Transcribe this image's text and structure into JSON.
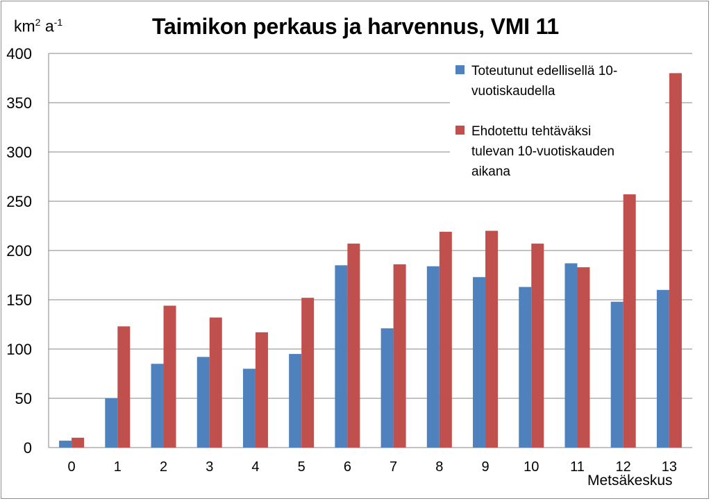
{
  "chart_data": {
    "type": "bar",
    "title": "Taimikon perkaus ja harvennus, VMI 11",
    "ylabel_base": "km",
    "ylabel_sup1": "2",
    "ylabel_mid": " a",
    "ylabel_sup2": "-1",
    "xlabel": "Metsäkeskus",
    "categories": [
      "0",
      "1",
      "2",
      "3",
      "4",
      "5",
      "6",
      "7",
      "8",
      "9",
      "10",
      "11",
      "12",
      "13"
    ],
    "ylim": [
      0,
      400
    ],
    "yticks": [
      "0",
      "50",
      "100",
      "150",
      "200",
      "250",
      "300",
      "350",
      "400"
    ],
    "grid": true,
    "legend_position": "top-right",
    "series": [
      {
        "name": "Toteutunut edellisellä 10-vuotiskaudella",
        "legend_lines": [
          "Toteutunut edellisellä 10-",
          "vuotiskaudella"
        ],
        "color": "#4f81bd",
        "values": [
          7,
          50,
          85,
          92,
          80,
          95,
          185,
          121,
          184,
          173,
          163,
          187,
          148,
          160
        ]
      },
      {
        "name": "Ehdotettu tehtäväksi tulevan 10-vuotiskauden aikana",
        "legend_lines": [
          "Ehdotettu tehtäväksi",
          "tulevan  10-vuotiskauden",
          "aikana"
        ],
        "color": "#c0504d",
        "values": [
          10,
          123,
          144,
          132,
          117,
          152,
          207,
          186,
          219,
          220,
          207,
          183,
          257,
          380
        ]
      }
    ]
  }
}
